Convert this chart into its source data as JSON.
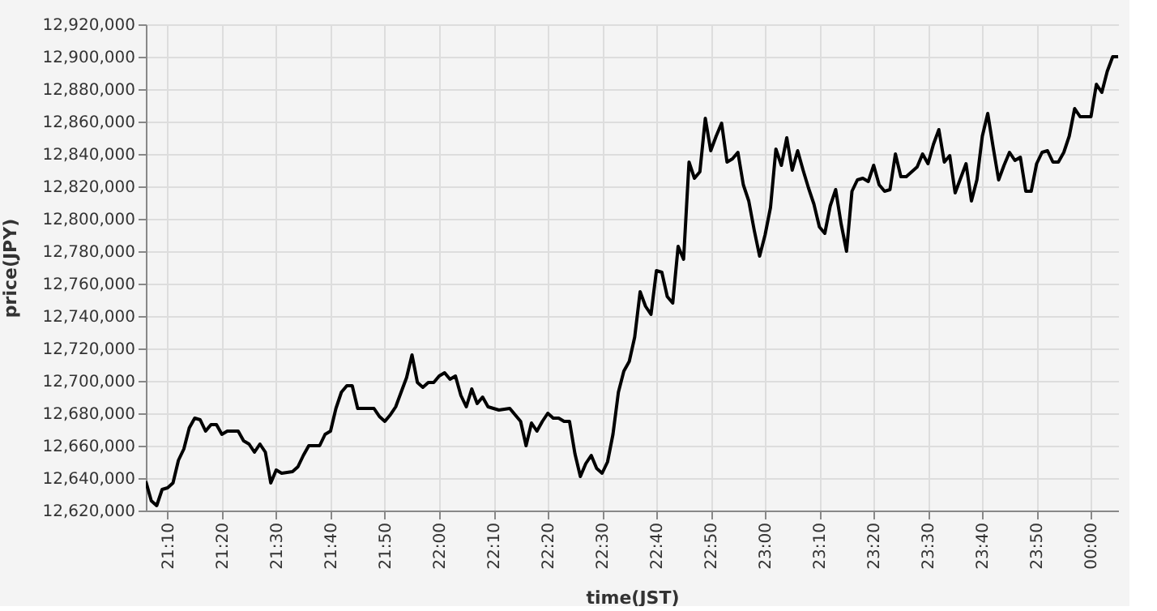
{
  "chart_data": {
    "type": "line",
    "xlabel": "time(JST)",
    "ylabel": "price(JPY)",
    "x": [
      21.1,
      21.1167,
      21.1333,
      21.15,
      21.1667,
      21.1833,
      21.2,
      21.2167,
      21.2333,
      21.25,
      21.2667,
      21.2833,
      21.3,
      21.3167,
      21.3333,
      21.35,
      21.3833,
      21.4,
      21.4167,
      21.4333,
      21.45,
      21.4667,
      21.4833,
      21.5,
      21.5167,
      21.55,
      21.5667,
      21.5833,
      21.6,
      21.6333,
      21.65,
      21.6667,
      21.6833,
      21.7,
      21.7167,
      21.7333,
      21.75,
      21.8,
      21.8167,
      21.8333,
      21.85,
      21.8667,
      21.8833,
      21.9,
      21.9167,
      21.9333,
      21.95,
      21.9667,
      21.9833,
      22.0,
      22.0167,
      22.0333,
      22.05,
      22.0667,
      22.0833,
      22.1,
      22.1167,
      22.1333,
      22.15,
      22.1833,
      22.2167,
      22.2333,
      22.25,
      22.2667,
      22.2833,
      22.3,
      22.3167,
      22.3333,
      22.35,
      22.3667,
      22.3833,
      22.4,
      22.4167,
      22.4333,
      22.45,
      22.4667,
      22.4833,
      22.5,
      22.5167,
      22.5333,
      22.55,
      22.5667,
      22.5833,
      22.6,
      22.6167,
      22.6333,
      22.65,
      22.6667,
      22.6833,
      22.7,
      22.7167,
      22.7333,
      22.75,
      22.7667,
      22.7833,
      22.8,
      22.8167,
      22.8333,
      22.85,
      22.8667,
      22.8833,
      22.9,
      22.9167,
      22.9333,
      22.95,
      22.9667,
      22.9833,
      23.0,
      23.0167,
      23.0333,
      23.05,
      23.0667,
      23.0833,
      23.1,
      23.1167,
      23.1333,
      23.15,
      23.1667,
      23.1833,
      23.2,
      23.2167,
      23.2333,
      23.25,
      23.2667,
      23.2833,
      23.3,
      23.3167,
      23.3333,
      23.35,
      23.3667,
      23.3833,
      23.4,
      23.4167,
      23.4333,
      23.45,
      23.4667,
      23.4833,
      23.5,
      23.5167,
      23.5333,
      23.55,
      23.5667,
      23.5833,
      23.6,
      23.6167,
      23.6333,
      23.65,
      23.6667,
      23.6833,
      23.7,
      23.7167,
      23.7333,
      23.75,
      23.7667,
      23.7833,
      23.8,
      23.8167,
      23.8333,
      23.85,
      23.8667,
      23.8833,
      23.9,
      23.9167,
      23.9333,
      23.95,
      23.9667,
      24.0,
      24.0167,
      24.0333,
      24.05,
      24.0667,
      24.0833
    ],
    "series": [
      {
        "color": "#000000",
        "values": [
          12638000,
          12626000,
          12623000,
          12633000,
          12634000,
          12637000,
          12651000,
          12658000,
          12671000,
          12677000,
          12676000,
          12669000,
          12673000,
          12673000,
          12667000,
          12669000,
          12669000,
          12663000,
          12661000,
          12656000,
          12661000,
          12656000,
          12637000,
          12645000,
          12643000,
          12644000,
          12647000,
          12654000,
          12660000,
          12660000,
          12667000,
          12669000,
          12683000,
          12693000,
          12697000,
          12697000,
          12683000,
          12683000,
          12678000,
          12675000,
          12679000,
          12684000,
          12693000,
          12702000,
          12716000,
          12699000,
          12696000,
          12699000,
          12699000,
          12703000,
          12705000,
          12701000,
          12703000,
          12691000,
          12684000,
          12695000,
          12686000,
          12690000,
          12684000,
          12682000,
          12683000,
          12679000,
          12675000,
          12660000,
          12674000,
          12669000,
          12675000,
          12680000,
          12677000,
          12677000,
          12675000,
          12675000,
          12655000,
          12641000,
          12649000,
          12654000,
          12646000,
          12643000,
          12650000,
          12667000,
          12693000,
          12706000,
          12712000,
          12727000,
          12755000,
          12746000,
          12741000,
          12768000,
          12767000,
          12752000,
          12748000,
          12783000,
          12775000,
          12835000,
          12825000,
          12829000,
          12862000,
          12842000,
          12851000,
          12859000,
          12835000,
          12837000,
          12841000,
          12821000,
          12811000,
          12793000,
          12777000,
          12790000,
          12807000,
          12843000,
          12833000,
          12850000,
          12830000,
          12842000,
          12830000,
          12819000,
          12809000,
          12795000,
          12791000,
          12808000,
          12818000,
          12797000,
          12780000,
          12817000,
          12824000,
          12825000,
          12823000,
          12833000,
          12821000,
          12817000,
          12818000,
          12840000,
          12826000,
          12826000,
          12829000,
          12832000,
          12840000,
          12834000,
          12846000,
          12855000,
          12835000,
          12839000,
          12816000,
          12825000,
          12834000,
          12811000,
          12824000,
          12851000,
          12865000,
          12844000,
          12824000,
          12833000,
          12841000,
          12836000,
          12838000,
          12817000,
          12817000,
          12834000,
          12841000,
          12842000,
          12835000,
          12835000,
          12841000,
          12851000,
          12868000,
          12863000,
          12863000,
          12883000,
          12878000,
          12891000,
          12900000,
          12900000
        ]
      }
    ],
    "xlim": [
      21.1,
      24.0833
    ],
    "xticks": [
      {
        "value": 21.1667,
        "label": "21:10"
      },
      {
        "value": 21.3333,
        "label": "21:20"
      },
      {
        "value": 21.5,
        "label": "21:30"
      },
      {
        "value": 21.6667,
        "label": "21:40"
      },
      {
        "value": 21.8333,
        "label": "21:50"
      },
      {
        "value": 22.0,
        "label": "22:00"
      },
      {
        "value": 22.1667,
        "label": "22:10"
      },
      {
        "value": 22.3333,
        "label": "22:20"
      },
      {
        "value": 22.5,
        "label": "22:30"
      },
      {
        "value": 22.6667,
        "label": "22:40"
      },
      {
        "value": 22.8333,
        "label": "22:50"
      },
      {
        "value": 23.0,
        "label": "23:00"
      },
      {
        "value": 23.1667,
        "label": "23:10"
      },
      {
        "value": 23.3333,
        "label": "23:20"
      },
      {
        "value": 23.5,
        "label": "23:30"
      },
      {
        "value": 23.6667,
        "label": "23:40"
      },
      {
        "value": 23.8333,
        "label": "23:50"
      },
      {
        "value": 24.0,
        "label": "00:00"
      }
    ],
    "ylim": [
      12620000,
      12920000
    ],
    "yticks": [
      {
        "value": 12620000,
        "label": "12,620,000"
      },
      {
        "value": 12640000,
        "label": "12,640,000"
      },
      {
        "value": 12660000,
        "label": "12,660,000"
      },
      {
        "value": 12680000,
        "label": "12,680,000"
      },
      {
        "value": 12700000,
        "label": "12,700,000"
      },
      {
        "value": 12720000,
        "label": "12,720,000"
      },
      {
        "value": 12740000,
        "label": "12,740,000"
      },
      {
        "value": 12760000,
        "label": "12,760,000"
      },
      {
        "value": 12780000,
        "label": "12,780,000"
      },
      {
        "value": 12800000,
        "label": "12,800,000"
      },
      {
        "value": 12820000,
        "label": "12,820,000"
      },
      {
        "value": 12840000,
        "label": "12,840,000"
      },
      {
        "value": 12860000,
        "label": "12,860,000"
      },
      {
        "value": 12880000,
        "label": "12,880,000"
      },
      {
        "value": 12900000,
        "label": "12,900,000"
      },
      {
        "value": 12920000,
        "label": "12,920,000"
      }
    ],
    "grid": true,
    "marker": "none",
    "line_style": "solid"
  }
}
